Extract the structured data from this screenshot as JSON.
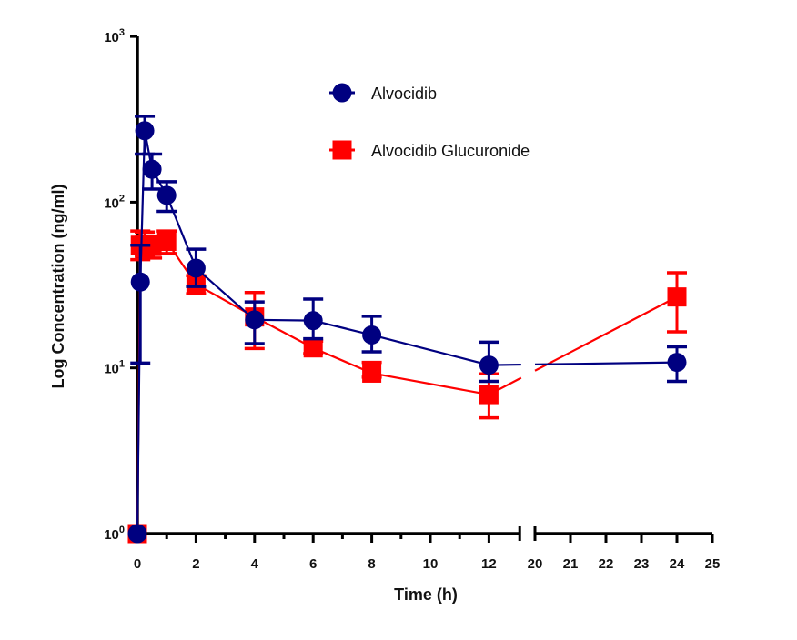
{
  "chart_data": {
    "type": "line",
    "title": "",
    "xlabel": "Time (h)",
    "ylabel": "Log Concentration (ng/ml)",
    "yscale": "log",
    "ylim": [
      1,
      1000
    ],
    "y_ticks": [
      {
        "value": 1,
        "base": "10",
        "exp": "0"
      },
      {
        "value": 10,
        "base": "10",
        "exp": "1"
      },
      {
        "value": 100,
        "base": "10",
        "exp": "2"
      },
      {
        "value": 1000,
        "base": "10",
        "exp": "3"
      }
    ],
    "x_axis_break": {
      "segments": [
        [
          0,
          13
        ],
        [
          20,
          25
        ]
      ]
    },
    "x_ticks_labeled": [
      "0",
      "2",
      "4",
      "6",
      "8",
      "10",
      "12",
      "20",
      "21",
      "22",
      "23",
      "24",
      "25"
    ],
    "x_ticks_values": [
      0,
      2,
      4,
      6,
      8,
      10,
      12,
      20,
      21,
      22,
      23,
      24,
      25
    ],
    "x_minor_ticks": [
      1,
      3,
      5,
      7,
      9,
      11
    ],
    "grid": false,
    "legend_position": "top-center",
    "series": [
      {
        "name": "Alvocidib",
        "color": "#000080",
        "marker": "circle",
        "x": [
          0,
          0.1,
          0.25,
          0.5,
          1,
          2,
          4,
          6,
          8,
          12,
          24
        ],
        "y": [
          1,
          33,
          270,
          158,
          110,
          40,
          19.5,
          19.3,
          15.8,
          10.4,
          10.8
        ],
        "err_low": [
          1,
          10.7,
          195,
          120,
          88,
          31,
          14,
          15,
          12.5,
          8.3,
          8.3
        ],
        "err_high": [
          1,
          55,
          330,
          195,
          133,
          52,
          25,
          26,
          20.5,
          14.3,
          13.4
        ]
      },
      {
        "name": "Alvocidib Glucuronide",
        "color": "#ff0000",
        "marker": "square",
        "x": [
          0,
          0.1,
          0.25,
          0.5,
          1,
          2,
          4,
          6,
          8,
          12,
          24
        ],
        "y": [
          1,
          55,
          56,
          54,
          58,
          32,
          20.3,
          13.2,
          9.3,
          6.9,
          26.8
        ],
        "err_low": [
          1,
          45,
          47,
          46,
          49,
          28,
          13.1,
          12.2,
          8.8,
          5.0,
          16.5
        ],
        "err_high": [
          1,
          67,
          66,
          62,
          67,
          36,
          28.5,
          14.5,
          10.8,
          9.2,
          37.5
        ]
      }
    ]
  }
}
